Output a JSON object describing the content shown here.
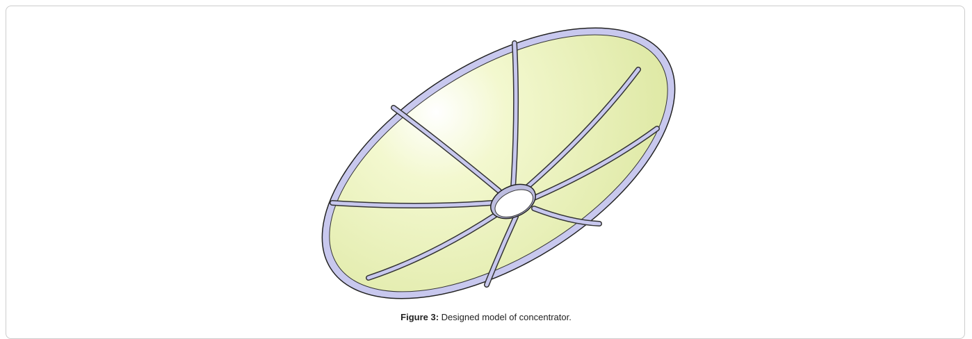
{
  "figure": {
    "label": "Figure 3:",
    "caption": "Designed model of concentrator."
  }
}
